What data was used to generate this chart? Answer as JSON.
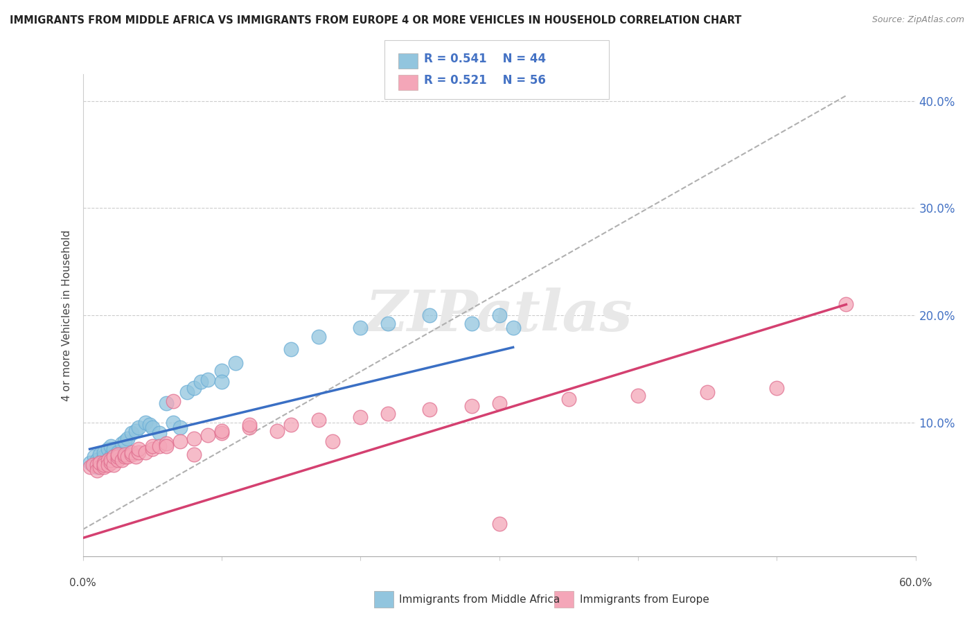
{
  "title": "IMMIGRANTS FROM MIDDLE AFRICA VS IMMIGRANTS FROM EUROPE 4 OR MORE VEHICLES IN HOUSEHOLD CORRELATION CHART",
  "source": "Source: ZipAtlas.com",
  "ylabel": "4 or more Vehicles in Household",
  "legend_label_blue": "Immigrants from Middle Africa",
  "legend_label_pink": "Immigrants from Europe",
  "blue_color": "#92c5de",
  "pink_color": "#f4a6b8",
  "blue_edge": "#6baed6",
  "pink_edge": "#e07090",
  "xlim": [
    0.0,
    0.6
  ],
  "ylim": [
    -0.025,
    0.425
  ],
  "ytick_values": [
    0.0,
    0.1,
    0.2,
    0.3,
    0.4
  ],
  "blue_scatter": [
    [
      0.005,
      0.062
    ],
    [
      0.008,
      0.06
    ],
    [
      0.008,
      0.068
    ],
    [
      0.01,
      0.058
    ],
    [
      0.01,
      0.062
    ],
    [
      0.01,
      0.065
    ],
    [
      0.012,
      0.06
    ],
    [
      0.012,
      0.07
    ],
    [
      0.015,
      0.068
    ],
    [
      0.015,
      0.072
    ],
    [
      0.018,
      0.065
    ],
    [
      0.018,
      0.075
    ],
    [
      0.02,
      0.068
    ],
    [
      0.02,
      0.078
    ],
    [
      0.022,
      0.075
    ],
    [
      0.025,
      0.072
    ],
    [
      0.028,
      0.08
    ],
    [
      0.03,
      0.082
    ],
    [
      0.032,
      0.085
    ],
    [
      0.035,
      0.09
    ],
    [
      0.038,
      0.092
    ],
    [
      0.04,
      0.095
    ],
    [
      0.045,
      0.1
    ],
    [
      0.048,
      0.098
    ],
    [
      0.05,
      0.095
    ],
    [
      0.06,
      0.118
    ],
    [
      0.065,
      0.1
    ],
    [
      0.07,
      0.095
    ],
    [
      0.075,
      0.128
    ],
    [
      0.08,
      0.132
    ],
    [
      0.085,
      0.138
    ],
    [
      0.09,
      0.14
    ],
    [
      0.1,
      0.148
    ],
    [
      0.11,
      0.155
    ],
    [
      0.15,
      0.168
    ],
    [
      0.17,
      0.18
    ],
    [
      0.2,
      0.188
    ],
    [
      0.22,
      0.192
    ],
    [
      0.25,
      0.2
    ],
    [
      0.28,
      0.192
    ],
    [
      0.3,
      0.2
    ],
    [
      0.31,
      0.188
    ],
    [
      0.1,
      0.138
    ],
    [
      0.055,
      0.09
    ]
  ],
  "pink_scatter": [
    [
      0.005,
      0.058
    ],
    [
      0.007,
      0.06
    ],
    [
      0.01,
      0.06
    ],
    [
      0.01,
      0.055
    ],
    [
      0.012,
      0.058
    ],
    [
      0.012,
      0.062
    ],
    [
      0.015,
      0.058
    ],
    [
      0.015,
      0.062
    ],
    [
      0.015,
      0.06
    ],
    [
      0.018,
      0.065
    ],
    [
      0.018,
      0.06
    ],
    [
      0.02,
      0.062
    ],
    [
      0.02,
      0.065
    ],
    [
      0.022,
      0.06
    ],
    [
      0.022,
      0.068
    ],
    [
      0.025,
      0.065
    ],
    [
      0.025,
      0.068
    ],
    [
      0.025,
      0.07
    ],
    [
      0.028,
      0.065
    ],
    [
      0.03,
      0.068
    ],
    [
      0.03,
      0.07
    ],
    [
      0.032,
      0.068
    ],
    [
      0.035,
      0.07
    ],
    [
      0.035,
      0.072
    ],
    [
      0.038,
      0.068
    ],
    [
      0.04,
      0.072
    ],
    [
      0.04,
      0.075
    ],
    [
      0.045,
      0.072
    ],
    [
      0.05,
      0.075
    ],
    [
      0.05,
      0.078
    ],
    [
      0.055,
      0.078
    ],
    [
      0.06,
      0.08
    ],
    [
      0.065,
      0.12
    ],
    [
      0.07,
      0.082
    ],
    [
      0.08,
      0.085
    ],
    [
      0.09,
      0.088
    ],
    [
      0.1,
      0.09
    ],
    [
      0.1,
      0.092
    ],
    [
      0.12,
      0.095
    ],
    [
      0.12,
      0.098
    ],
    [
      0.14,
      0.092
    ],
    [
      0.15,
      0.098
    ],
    [
      0.17,
      0.102
    ],
    [
      0.18,
      0.082
    ],
    [
      0.2,
      0.105
    ],
    [
      0.22,
      0.108
    ],
    [
      0.25,
      0.112
    ],
    [
      0.28,
      0.115
    ],
    [
      0.3,
      0.005
    ],
    [
      0.3,
      0.118
    ],
    [
      0.35,
      0.122
    ],
    [
      0.4,
      0.125
    ],
    [
      0.45,
      0.128
    ],
    [
      0.5,
      0.132
    ],
    [
      0.55,
      0.21
    ],
    [
      0.06,
      0.078
    ],
    [
      0.08,
      0.07
    ]
  ],
  "blue_trendline_x": [
    0.005,
    0.31
  ],
  "blue_trendline_y": [
    0.075,
    0.17
  ],
  "pink_trendline_x": [
    0.0,
    0.55
  ],
  "pink_trendline_y": [
    -0.008,
    0.21
  ],
  "dashed_line_x": [
    0.0,
    0.55
  ],
  "dashed_line_y": [
    0.0,
    0.405
  ],
  "watermark_text": "ZIPatlas",
  "background_color": "#ffffff"
}
